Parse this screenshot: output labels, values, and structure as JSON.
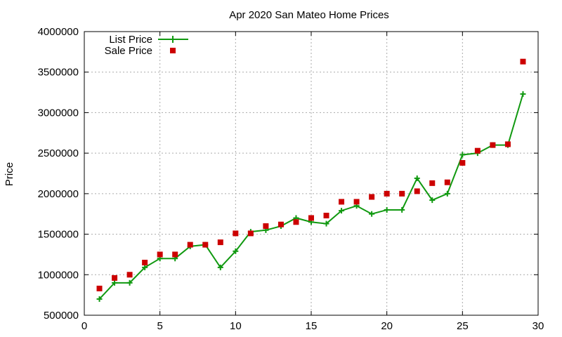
{
  "chart_data": {
    "type": "line",
    "title": "Apr 2020 San Mateo Home Prices",
    "xlabel": "",
    "ylabel": "Price",
    "xlim": [
      0,
      30
    ],
    "ylim": [
      500000,
      4000000
    ],
    "xticks": [
      0,
      5,
      10,
      15,
      20,
      25,
      30
    ],
    "yticks": [
      500000,
      1000000,
      1500000,
      2000000,
      2500000,
      3000000,
      3500000,
      4000000
    ],
    "grid": true,
    "legend_position": "top-left",
    "series": [
      {
        "name": "List Price",
        "style": "line-points",
        "color": "#109910",
        "x": [
          1,
          2,
          3,
          4,
          5,
          6,
          7,
          8,
          9,
          10,
          11,
          12,
          13,
          14,
          15,
          16,
          17,
          18,
          19,
          20,
          21,
          22,
          23,
          24,
          25,
          26,
          27,
          28,
          29
        ],
        "y": [
          700000,
          900000,
          900000,
          1090000,
          1200000,
          1200000,
          1350000,
          1370000,
          1090000,
          1290000,
          1530000,
          1550000,
          1600000,
          1700000,
          1650000,
          1630000,
          1790000,
          1850000,
          1750000,
          1800000,
          1800000,
          2190000,
          1920000,
          2000000,
          2480000,
          2500000,
          2600000,
          2600000,
          3230000
        ]
      },
      {
        "name": "Sale Price",
        "style": "points",
        "color": "#cc0000",
        "x": [
          1,
          2,
          3,
          4,
          5,
          6,
          7,
          8,
          9,
          10,
          11,
          12,
          13,
          14,
          15,
          16,
          17,
          18,
          19,
          20,
          21,
          22,
          23,
          24,
          25,
          26,
          27,
          28,
          29
        ],
        "y": [
          830000,
          960000,
          1000000,
          1150000,
          1250000,
          1250000,
          1370000,
          1370000,
          1400000,
          1510000,
          1510000,
          1600000,
          1620000,
          1650000,
          1700000,
          1730000,
          1900000,
          1900000,
          1960000,
          2000000,
          2000000,
          2030000,
          2130000,
          2140000,
          2380000,
          2530000,
          2600000,
          2610000,
          3630000
        ]
      }
    ]
  }
}
